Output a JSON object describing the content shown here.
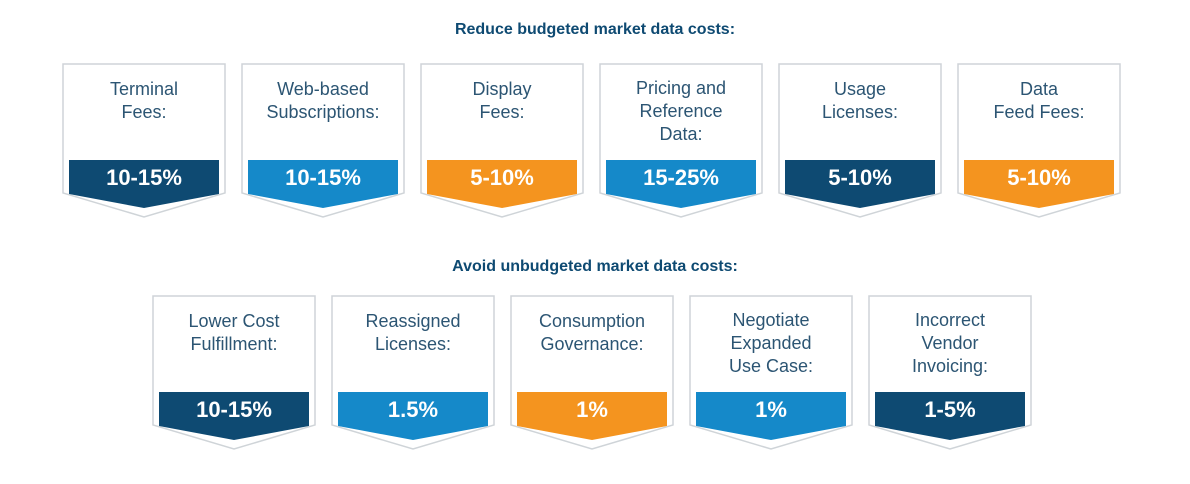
{
  "colors": {
    "navy": "#0e4a72",
    "blue": "#1589c9",
    "orange": "#f4941f",
    "border": "#cfd4d8"
  },
  "sections": [
    {
      "heading": "Reduce budgeted market data costs:",
      "cards": [
        {
          "label_lines": [
            "Terminal",
            "Fees:"
          ],
          "value": "10-15%",
          "color": "navy"
        },
        {
          "label_lines": [
            "Web-based",
            "Subscriptions:"
          ],
          "value": "10-15%",
          "color": "blue"
        },
        {
          "label_lines": [
            "Display",
            "Fees:"
          ],
          "value": "5-10%",
          "color": "orange"
        },
        {
          "label_lines": [
            "Pricing and",
            "Reference",
            "Data:"
          ],
          "value": "15-25%",
          "color": "blue"
        },
        {
          "label_lines": [
            "Usage",
            "Licenses:"
          ],
          "value": "5-10%",
          "color": "navy"
        },
        {
          "label_lines": [
            "Data",
            "Feed Fees:"
          ],
          "value": "5-10%",
          "color": "orange"
        }
      ]
    },
    {
      "heading": "Avoid unbudgeted market data costs:",
      "cards": [
        {
          "label_lines": [
            "Lower Cost",
            "Fulfillment:"
          ],
          "value": "10-15%",
          "color": "navy"
        },
        {
          "label_lines": [
            "Reassigned",
            "Licenses:"
          ],
          "value": "1.5%",
          "color": "blue"
        },
        {
          "label_lines": [
            "Consumption",
            "Governance:"
          ],
          "value": "1%",
          "color": "orange"
        },
        {
          "label_lines": [
            "Negotiate",
            "Expanded",
            "Use Case:"
          ],
          "value": "1%",
          "color": "blue"
        },
        {
          "label_lines": [
            "Incorrect",
            "Vendor",
            "Invoicing:"
          ],
          "value": "1-5%",
          "color": "navy"
        }
      ]
    }
  ]
}
